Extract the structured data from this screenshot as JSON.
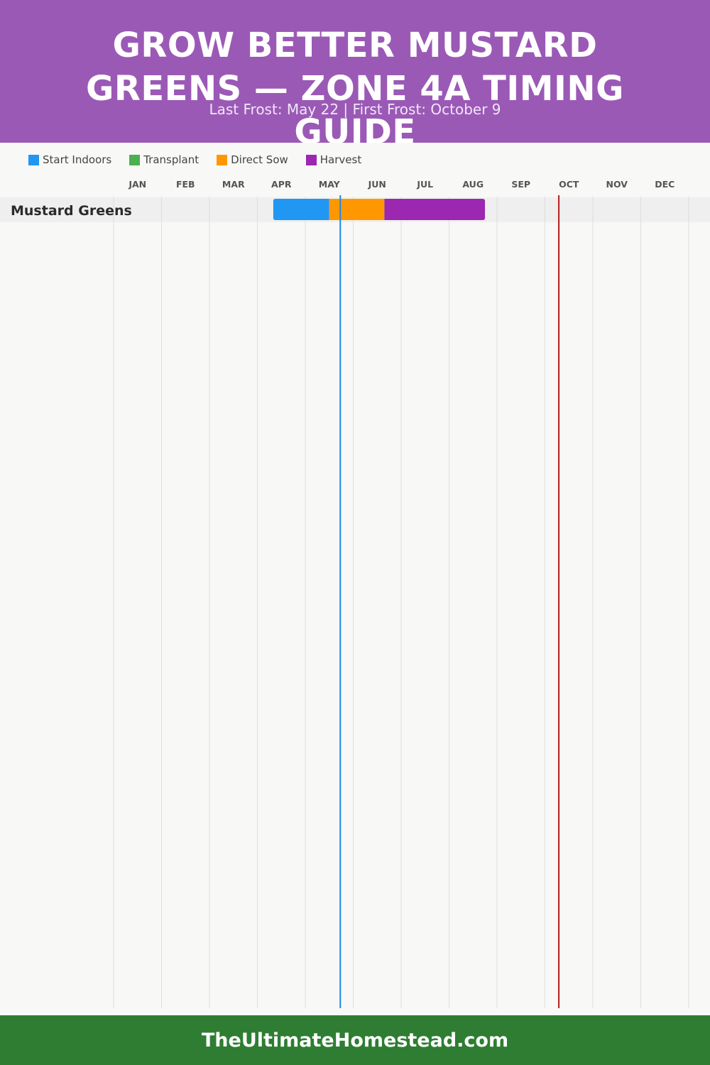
{
  "header": {
    "title": "GROW BETTER MUSTARD GREENS — ZONE 4A TIMING GUIDE",
    "subtitle": "Last Frost: May 22 | First Frost: October 9"
  },
  "legend": {
    "start_indoors": "Start Indoors",
    "transplant": "Transplant",
    "direct_sow": "Direct Sow",
    "harvest": "Harvest"
  },
  "colors": {
    "header_bg": "#9b59b6",
    "start_indoors": "#2196f3",
    "transplant": "#4caf50",
    "direct_sow": "#ff9800",
    "harvest": "#9c27b0",
    "last_frost_line": "#1e88e5",
    "first_frost_line": "#b71c1c",
    "footer_bg": "#2e7d32"
  },
  "chart_data": {
    "type": "gantt",
    "x": [
      "JAN",
      "FEB",
      "MAR",
      "APR",
      "MAY",
      "JUN",
      "JUL",
      "AUG",
      "SEP",
      "OCT",
      "NOV",
      "DEC"
    ],
    "xlim": [
      0,
      12
    ],
    "grid": true,
    "legend_position": "top-left",
    "crops": [
      {
        "name": "Mustard Greens",
        "segments": [
          {
            "phase": "Start Indoors",
            "start": 3.33,
            "end": 4.5
          },
          {
            "phase": "Direct Sow",
            "start": 4.5,
            "end": 5.65
          },
          {
            "phase": "Harvest",
            "start": 5.65,
            "end": 7.75
          }
        ]
      }
    ],
    "markers": [
      {
        "label": "Last Frost",
        "value": 4.73
      },
      {
        "label": "First Frost",
        "value": 9.29
      }
    ]
  },
  "footer": {
    "site": "TheUltimateHomestead.com"
  }
}
